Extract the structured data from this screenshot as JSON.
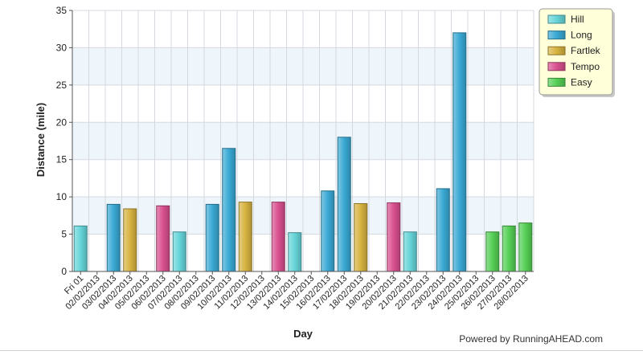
{
  "chart_data": {
    "type": "bar",
    "xlabel": "Day",
    "ylabel": "Distance (mile)",
    "ylim": [
      0,
      35
    ],
    "yticks": [
      0,
      5,
      10,
      15,
      20,
      25,
      30,
      35
    ],
    "grid": true,
    "legend_position": "top-right",
    "categories": [
      "Fri 01",
      "02/02/2013",
      "03/02/2013",
      "04/02/2013",
      "05/02/2013",
      "06/02/2013",
      "07/02/2013",
      "08/02/2013",
      "09/02/2013",
      "10/02/2013",
      "11/02/2013",
      "12/02/2013",
      "13/02/2013",
      "14/02/2013",
      "15/02/2013",
      "16/02/2013",
      "17/02/2013",
      "18/02/2013",
      "19/02/2013",
      "20/02/2013",
      "21/02/2013",
      "22/02/2013",
      "23/02/2013",
      "24/02/2013",
      "25/02/2013",
      "26/02/2013",
      "27/02/2013",
      "28/02/2013"
    ],
    "series": [
      {
        "name": "Hill",
        "color": "#66d5d9",
        "values": [
          6.1,
          null,
          null,
          null,
          null,
          null,
          5.3,
          null,
          null,
          null,
          null,
          null,
          null,
          5.2,
          null,
          null,
          null,
          null,
          null,
          null,
          5.3,
          null,
          null,
          null,
          null,
          null,
          null,
          null
        ]
      },
      {
        "name": "Long",
        "color": "#3aa9d4",
        "values": [
          null,
          null,
          9.0,
          null,
          null,
          null,
          null,
          null,
          9.0,
          16.5,
          null,
          null,
          null,
          null,
          null,
          10.8,
          18.0,
          null,
          null,
          null,
          null,
          null,
          11.1,
          32.0,
          null,
          null,
          null,
          null
        ]
      },
      {
        "name": "Fartlek",
        "color": "#d7b340",
        "values": [
          null,
          null,
          null,
          8.4,
          null,
          null,
          null,
          null,
          null,
          null,
          9.3,
          null,
          null,
          null,
          null,
          null,
          null,
          9.1,
          null,
          null,
          null,
          null,
          null,
          null,
          null,
          null,
          null,
          null
        ]
      },
      {
        "name": "Tempo",
        "color": "#d9508f",
        "values": [
          null,
          null,
          null,
          null,
          null,
          8.8,
          null,
          null,
          null,
          null,
          null,
          null,
          9.3,
          null,
          null,
          null,
          null,
          null,
          null,
          9.2,
          null,
          null,
          null,
          null,
          null,
          null,
          null,
          null
        ]
      },
      {
        "name": "Easy",
        "color": "#55cf55",
        "values": [
          null,
          null,
          null,
          null,
          null,
          null,
          null,
          null,
          null,
          null,
          null,
          null,
          null,
          null,
          null,
          null,
          null,
          null,
          null,
          null,
          null,
          null,
          null,
          null,
          null,
          5.3,
          6.1,
          6.5
        ]
      }
    ]
  },
  "footer": {
    "credit": "Powered by RunningAHEAD.com"
  }
}
